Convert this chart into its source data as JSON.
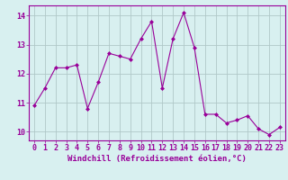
{
  "x": [
    0,
    1,
    2,
    3,
    4,
    5,
    6,
    7,
    8,
    9,
    10,
    11,
    12,
    13,
    14,
    15,
    16,
    17,
    18,
    19,
    20,
    21,
    22,
    23
  ],
  "y": [
    10.9,
    11.5,
    12.2,
    12.2,
    12.3,
    10.8,
    11.7,
    12.7,
    12.6,
    12.5,
    13.2,
    13.8,
    11.5,
    13.2,
    14.1,
    12.9,
    10.6,
    10.6,
    10.3,
    10.4,
    10.55,
    10.1,
    9.9,
    10.15
  ],
  "line_color": "#990099",
  "marker": "D",
  "marker_size": 2,
  "bg_color": "#d8f0f0",
  "grid_color": "#b0c8c8",
  "xlabel": "Windchill (Refroidissement éolien,°C)",
  "xlim": [
    -0.5,
    23.5
  ],
  "ylim": [
    9.7,
    14.35
  ],
  "yticks": [
    10,
    11,
    12,
    13,
    14
  ],
  "xticks": [
    0,
    1,
    2,
    3,
    4,
    5,
    6,
    7,
    8,
    9,
    10,
    11,
    12,
    13,
    14,
    15,
    16,
    17,
    18,
    19,
    20,
    21,
    22,
    23
  ],
  "tick_color": "#990099",
  "label_color": "#990099",
  "label_fontsize": 6.5,
  "tick_fontsize": 6.0
}
